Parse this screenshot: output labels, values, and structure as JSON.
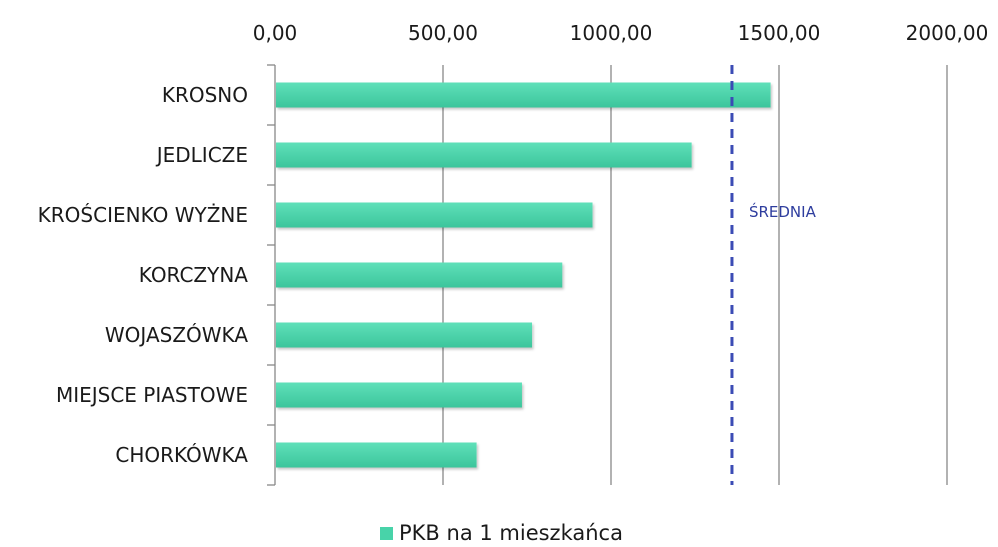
{
  "chart_data": {
    "type": "bar",
    "orientation": "horizontal",
    "categories": [
      "KROSNO",
      "JEDLICZE",
      "KROŚCIENKO WYŻNE",
      "KORCZYNA",
      "WOJASZÓWKA",
      "MIEJSCE PIASTOWE",
      "CHORKÓWKA"
    ],
    "series": [
      {
        "name": "PKB na 1 mieszkańca",
        "values": [
          1475,
          1240,
          945,
          855,
          765,
          735,
          600
        ]
      }
    ],
    "xlim": [
      0,
      2000
    ],
    "xticks": [
      0,
      500,
      1000,
      1500,
      2000
    ],
    "xtick_labels": [
      "0,00",
      "500,00",
      "1000,00",
      "1500,00",
      "2000,00"
    ],
    "x_axis_position": "top",
    "grid": true,
    "legend": {
      "position": "bottom",
      "entries": [
        "PKB na 1 mieszkańca"
      ]
    },
    "reference_line": {
      "value": 1360,
      "label": "ŚREDNIA",
      "style": "dashed"
    },
    "colors": {
      "bar": "#48d3a9",
      "grid": "#888888",
      "reference": "#3b4bb5",
      "annotation": "#2e3d9e"
    }
  }
}
